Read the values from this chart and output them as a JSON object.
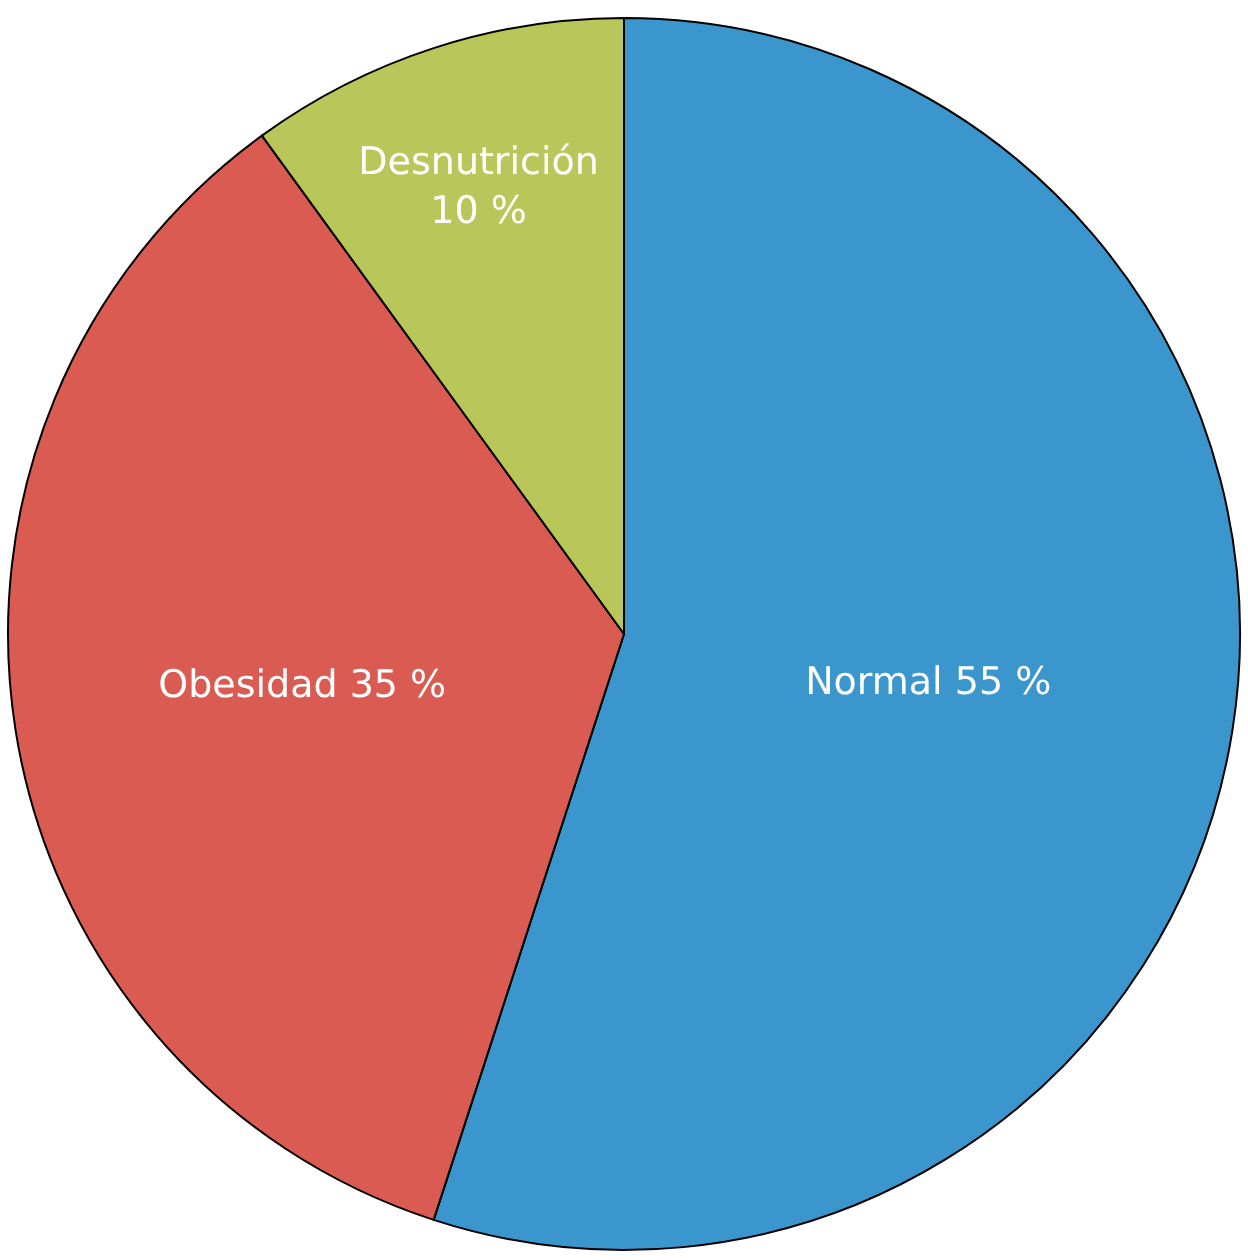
{
  "chart_data": {
    "type": "pie",
    "categories": [
      "Normal",
      "Obesidad",
      "Desnutrición"
    ],
    "values": [
      55,
      35,
      10
    ],
    "value_labels": [
      "55 %",
      "35 %",
      "10 %"
    ],
    "colors": [
      "#3a96cc",
      "#d95b52",
      "#b8c65a"
    ],
    "legend": false
  }
}
